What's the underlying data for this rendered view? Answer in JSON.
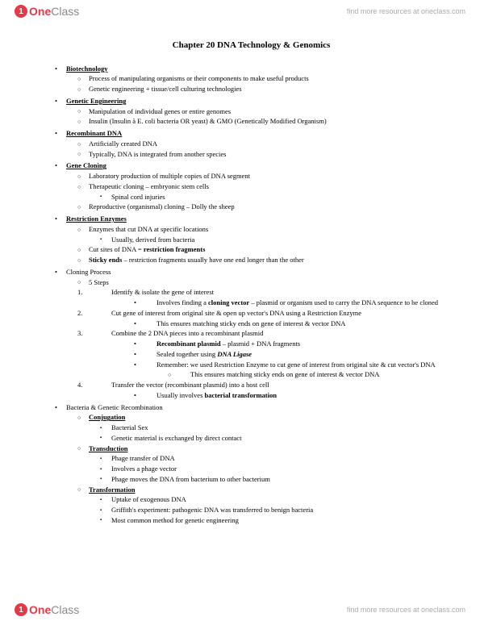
{
  "brand": {
    "one": "One",
    "class": "Class",
    "badge": "1"
  },
  "tagline": "find more resources at oneclass.com",
  "title": "Chapter 20 DNA Technology & Genomics",
  "s1": {
    "head": "Biotechnology",
    "a": "Process of manipulating organisms or their components to make useful products",
    "b": "Genetic engineering + tissue/cell culturing technologies"
  },
  "s2": {
    "head": "Genetic Engineering",
    "a": "Manipulation of individual genes or entire genomes",
    "b": "Insulin (Insulin à E. coli bacteria OR yeast) & GMO (Genetically Modified Organism)"
  },
  "s3": {
    "head": "Recombinant DNA",
    "a": "Artificially created DNA",
    "b": "Typically, DNA is integrated from another species"
  },
  "s4": {
    "head": "Gene Cloning",
    "a": "Laboratory production of multiple copies of DNA segment",
    "b": "Therapeutic cloning – embryonic stem cells",
    "b1": "Spinal cord injuries",
    "c": "Reproductive (organismal) cloning – Dolly the sheep"
  },
  "s5": {
    "head": "Restriction Enzymes",
    "a": "Enzymes that cut DNA at specific locations",
    "a1": "Usually, derived from bacteria",
    "b_pre": "Cut sites of DNA = ",
    "b_bold": "restriction fragments",
    "c_bold": "Sticky ends",
    "c_post": " – restriction fragments usually have one end longer than the other"
  },
  "s6": {
    "head": "Cloning Process",
    "a": "5 Steps",
    "n1": "1.",
    "step1": "Identify & isolate the gene of interest",
    "step1a_pre": "Involves finding a ",
    "step1a_bold": "cloning vector",
    "step1a_post": " – plasmid or organism used to carry the DNA sequence to be cloned",
    "n2": "2.",
    "step2": "Cut gene of interest from original site & open up vector's DNA using a Restriction Enzyme",
    "step2a": "This ensures matching sticky ends on gene of interest & vector DNA",
    "n3": "3.",
    "step3": "Combine the 2 DNA pieces into a recombinant plasmid",
    "step3a_bold": "Recombinant plasmid",
    "step3a_post": " – plasmid + DNA fragments",
    "step3b_pre": "Sealed together using ",
    "step3b_bi": "DNA Ligase",
    "step3c": "Remember: we used Restriction Enzyme to cut gene of interest from original site & cut vector's DNA",
    "step3c1": "This ensures matching sticky ends on gene of interest & vector DNA",
    "n4": "4.",
    "step4": "Transfer the vector (recombinant plasmid) into a host cell",
    "step4a_pre": "Usually involves ",
    "step4a_bold": "bacterial transformation"
  },
  "s7": {
    "head": "Bacteria & Genetic Recombination",
    "a": "Conjugation",
    "a1": "Bacterial Sex",
    "a2": "Genetic material is exchanged by direct contact",
    "b": "Transduction",
    "b1": "Phage transfer of DNA",
    "b2": "Involves a phage vector",
    "b3": "Phage moves the DNA from bacterium to other bacterium",
    "c": "Transformation",
    "c1": "Uptake of exogenous DNA",
    "c2": "Griffith's experiment: pathogenic DNA was transferred to benign bacteria",
    "c3": "Most common method for genetic engineering"
  }
}
